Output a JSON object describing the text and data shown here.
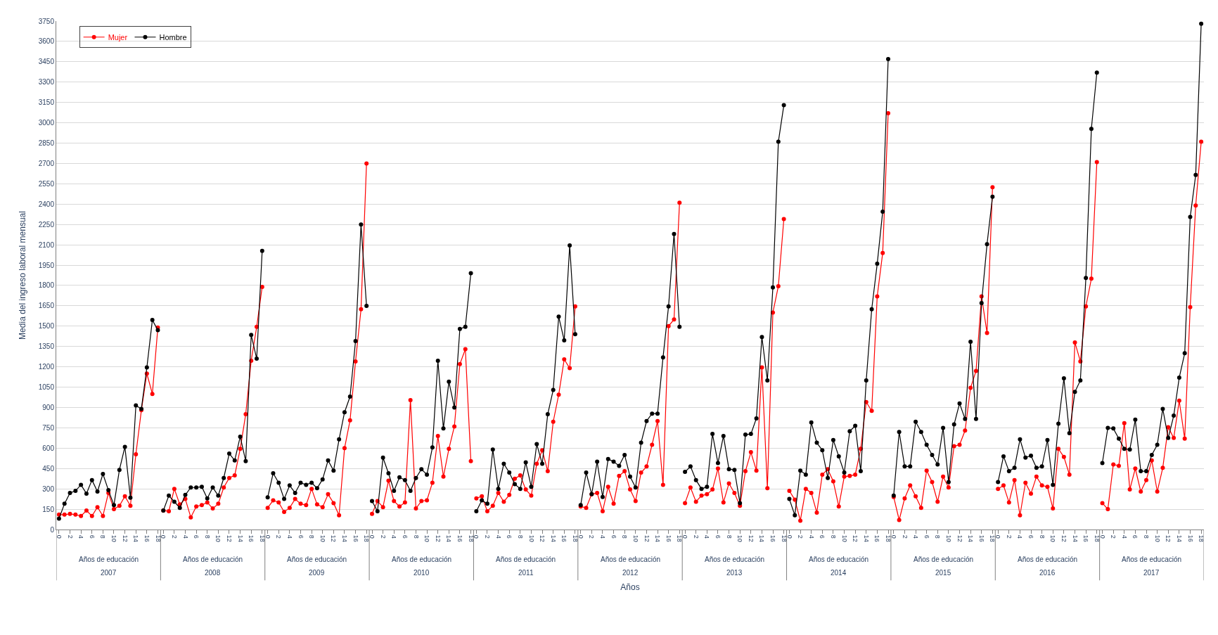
{
  "chart_data": {
    "type": "line",
    "xlabel": "Años",
    "ylabel": "Media del ingreso laboral mensual",
    "categories": [
      "0",
      null,
      "2",
      null,
      "4",
      null,
      "6",
      null,
      "8",
      null,
      "10",
      null,
      "12",
      null,
      "14",
      null,
      "16",
      null,
      "18",
      "0",
      null,
      "2",
      null,
      "4",
      null,
      "6",
      null,
      "8",
      null,
      "10",
      null,
      "12",
      null,
      "14",
      null,
      "16",
      null,
      "18",
      "0",
      null,
      "2",
      null,
      "4",
      null,
      "6",
      null,
      "8",
      null,
      "10",
      null,
      "12",
      null,
      "14",
      null,
      "16",
      null,
      "18",
      "0",
      null,
      "2",
      null,
      "4",
      null,
      "6",
      null,
      "8",
      null,
      "10",
      null,
      "12",
      null,
      "14",
      null,
      "16",
      null,
      "18",
      "0",
      null,
      "2",
      null,
      "4",
      null,
      "6",
      null,
      "8",
      null,
      "10",
      null,
      "12",
      null,
      "14",
      null,
      "16",
      null,
      "18",
      "0",
      null,
      "2",
      null,
      "4",
      null,
      "6",
      null,
      "8",
      null,
      "10",
      null,
      "12",
      null,
      "14",
      null,
      "16",
      null,
      "18",
      "0",
      null,
      "2",
      null,
      "4",
      null,
      "6",
      null,
      "8",
      null,
      "10",
      null,
      "12",
      null,
      "14",
      null,
      "16",
      null,
      "18",
      "0",
      null,
      "2",
      null,
      "4",
      null,
      "6",
      null,
      "8",
      null,
      "10",
      null,
      "12",
      null,
      "14",
      null,
      "16",
      null,
      "18",
      "0",
      null,
      "2",
      null,
      "4",
      null,
      "6",
      null,
      "8",
      null,
      "10",
      null,
      "12",
      null,
      "14",
      null,
      "16",
      null,
      "18",
      "0",
      null,
      "2",
      null,
      "4",
      null,
      "6",
      null,
      "8",
      null,
      "10",
      null,
      "12",
      null,
      "14",
      null,
      "16",
      null,
      "18",
      "0",
      null,
      "2",
      null,
      "4",
      null,
      "6",
      null,
      "8",
      null,
      "10",
      null,
      "12",
      null,
      "14",
      null,
      "16",
      null,
      "18"
    ],
    "series": [
      {
        "name": "Mujer",
        "color": "#ff0000",
        "values": [
          110,
          110,
          115,
          110,
          100,
          140,
          100,
          165,
          100,
          270,
          150,
          175,
          245,
          175,
          555,
          880,
          1150,
          1000,
          1490,
          140,
          135,
          300,
          185,
          225,
          90,
          170,
          180,
          200,
          155,
          190,
          310,
          380,
          400,
          595,
          850,
          1245,
          1495,
          1790,
          160,
          215,
          200,
          130,
          160,
          225,
          190,
          180,
          300,
          185,
          165,
          260,
          195,
          105,
          600,
          805,
          1240,
          1625,
          2700,
          115,
          210,
          165,
          360,
          210,
          170,
          200,
          955,
          155,
          210,
          215,
          345,
          690,
          390,
          595,
          760,
          1220,
          1330,
          505,
          230,
          245,
          135,
          175,
          270,
          205,
          255,
          375,
          400,
          295,
          250,
          485,
          585,
          430,
          795,
          995,
          1255,
          1190,
          1645,
          170,
          160,
          260,
          270,
          135,
          315,
          190,
          395,
          430,
          295,
          210,
          420,
          465,
          625,
          800,
          330,
          1500,
          1550,
          2410,
          195,
          310,
          205,
          250,
          260,
          295,
          450,
          200,
          340,
          270,
          175,
          430,
          570,
          435,
          1195,
          305,
          1600,
          1795,
          2290,
          285,
          220,
          65,
          300,
          270,
          125,
          405,
          445,
          355,
          170,
          390,
          395,
          405,
          595,
          940,
          875,
          1720,
          2040,
          3070,
          240,
          70,
          230,
          325,
          245,
          160,
          435,
          350,
          205,
          390,
          310,
          615,
          625,
          730,
          1045,
          1170,
          1720,
          1450,
          2525,
          300,
          325,
          200,
          365,
          105,
          345,
          265,
          390,
          325,
          315,
          155,
          595,
          535,
          405,
          1380,
          1240,
          1645,
          1850,
          2710,
          195,
          150,
          480,
          470,
          785,
          295,
          450,
          280,
          365,
          510,
          280,
          455,
          755,
          675,
          950,
          670,
          1640,
          2390,
          2860
        ]
      },
      {
        "name": "Hombre",
        "color": "#000000",
        "values": [
          80,
          190,
          270,
          285,
          330,
          265,
          365,
          280,
          410,
          290,
          180,
          440,
          610,
          235,
          915,
          890,
          1195,
          1545,
          1470,
          140,
          250,
          205,
          160,
          255,
          310,
          310,
          315,
          230,
          310,
          250,
          380,
          560,
          510,
          685,
          505,
          1435,
          1260,
          2055,
          237,
          415,
          345,
          225,
          325,
          270,
          345,
          330,
          345,
          305,
          370,
          510,
          435,
          665,
          865,
          980,
          1390,
          2250,
          1650,
          210,
          135,
          530,
          415,
          285,
          385,
          365,
          285,
          380,
          445,
          405,
          605,
          1245,
          745,
          1090,
          900,
          1480,
          1495,
          1890,
          135,
          215,
          190,
          590,
          300,
          485,
          420,
          335,
          300,
          495,
          315,
          630,
          485,
          850,
          1030,
          1570,
          1395,
          2095,
          1440,
          180,
          420,
          260,
          500,
          240,
          520,
          500,
          470,
          550,
          390,
          310,
          640,
          800,
          855,
          855,
          1270,
          1645,
          2180,
          1495,
          425,
          465,
          365,
          300,
          315,
          705,
          490,
          690,
          445,
          440,
          195,
          700,
          705,
          820,
          1420,
          1100,
          1785,
          2860,
          3130,
          225,
          105,
          435,
          405,
          790,
          640,
          585,
          380,
          660,
          540,
          420,
          725,
          765,
          430,
          1100,
          1625,
          1960,
          2345,
          3470,
          250,
          720,
          465,
          465,
          795,
          720,
          625,
          550,
          480,
          750,
          350,
          775,
          930,
          815,
          1385,
          815,
          1670,
          2105,
          2455,
          350,
          540,
          430,
          455,
          665,
          530,
          545,
          455,
          465,
          660,
          330,
          780,
          1115,
          710,
          1015,
          1100,
          1855,
          2955,
          3370,
          490,
          750,
          745,
          670,
          595,
          590,
          810,
          430,
          430,
          550,
          625,
          890,
          675,
          840,
          1120,
          1300,
          2305,
          2615,
          3730
        ]
      }
    ],
    "ylim": [
      0,
      3750
    ],
    "yticks": [
      0,
      150,
      300,
      450,
      600,
      750,
      900,
      1050,
      1200,
      1350,
      1500,
      1650,
      1800,
      1950,
      2100,
      2250,
      2400,
      2550,
      2700,
      2850,
      3000,
      3150,
      3300,
      3450,
      3600,
      3750
    ],
    "annotations": [
      "Años de educación",
      "Años de educación",
      "Años de educación",
      "Años de educación",
      "Años de educación",
      "Años de educación",
      "Años de educación",
      "Años de educación",
      "Años de educación",
      "Años de educación",
      "Años de educación",
      "2007",
      "2008",
      "2009",
      "2010",
      "2011",
      "2012",
      "2013",
      "2014",
      "2015",
      "2016",
      "2017"
    ],
    "grid": "y",
    "legend": "top left",
    "marker": "circle",
    "line_style": "solid"
  }
}
